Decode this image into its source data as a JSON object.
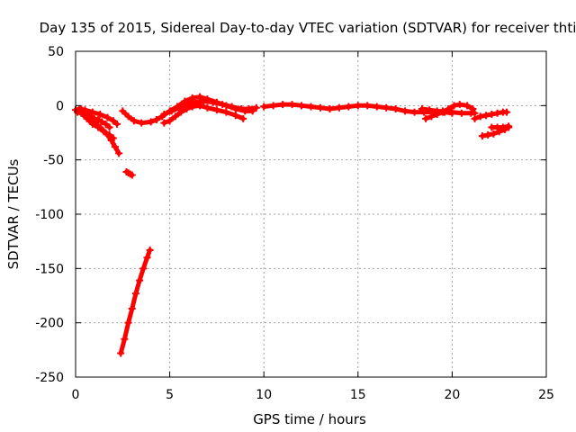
{
  "chart_data": {
    "type": "scatter",
    "title": "Day 135 of 2015, Sidereal Day-to-day VTEC variation (SDTVAR) for receiver thti",
    "xlabel": "GPS time / hours",
    "ylabel": "SDTVAR / TECUs",
    "xlim": [
      0,
      25
    ],
    "ylim": [
      -250,
      50
    ],
    "xticks": [
      0,
      5,
      10,
      15,
      20,
      25
    ],
    "yticks": [
      -250,
      -200,
      -150,
      -100,
      -50,
      0,
      50
    ],
    "xtick_labels": [
      "0",
      "5",
      "10",
      "15",
      "20",
      "25"
    ],
    "ytick_labels": [
      "-250",
      "-200",
      "-150",
      "-100",
      "-50",
      "0",
      "50"
    ],
    "grid": true,
    "legend": "none",
    "marker_color": "#ff0000",
    "series": [
      {
        "points": [
          [
            0.0,
            -4
          ],
          [
            0.2,
            -3
          ],
          [
            0.4,
            -5
          ],
          [
            0.6,
            -8
          ],
          [
            0.8,
            -10
          ],
          [
            1.0,
            -12
          ],
          [
            1.2,
            -13
          ],
          [
            1.4,
            -15
          ],
          [
            1.6,
            -17
          ],
          [
            1.8,
            -20
          ]
        ]
      },
      {
        "points": [
          [
            0.1,
            -6
          ],
          [
            0.3,
            -7
          ],
          [
            0.6,
            -12
          ],
          [
            0.9,
            -17
          ],
          [
            1.2,
            -20
          ],
          [
            1.5,
            -24
          ],
          [
            1.8,
            -27
          ],
          [
            2.0,
            -30
          ]
        ]
      },
      {
        "points": [
          [
            0.3,
            -3
          ],
          [
            0.7,
            -8
          ],
          [
            1.0,
            -15
          ],
          [
            1.3,
            -20
          ],
          [
            1.6,
            -25
          ],
          [
            1.9,
            -32
          ],
          [
            2.1,
            -38
          ],
          [
            2.3,
            -44
          ]
        ]
      },
      {
        "points": [
          [
            0.5,
            -4
          ],
          [
            0.9,
            -6
          ],
          [
            1.3,
            -8
          ],
          [
            1.7,
            -11
          ],
          [
            2.0,
            -14
          ],
          [
            2.2,
            -17
          ]
        ]
      },
      {
        "points": [
          [
            2.7,
            -61
          ],
          [
            2.8,
            -62
          ],
          [
            2.9,
            -63
          ],
          [
            3.0,
            -64
          ]
        ]
      },
      {
        "points": [
          [
            2.4,
            -228
          ],
          [
            2.6,
            -215
          ],
          [
            2.8,
            -200
          ],
          [
            3.0,
            -187
          ],
          [
            3.2,
            -173
          ],
          [
            3.4,
            -161
          ],
          [
            3.6,
            -150
          ],
          [
            3.8,
            -140
          ],
          [
            3.95,
            -133
          ]
        ]
      },
      {
        "points": [
          [
            2.5,
            -5
          ],
          [
            2.8,
            -10
          ],
          [
            3.1,
            -14
          ],
          [
            3.5,
            -16
          ],
          [
            4.0,
            -15
          ],
          [
            4.3,
            -13
          ],
          [
            4.6,
            -10
          ],
          [
            5.0,
            -5
          ],
          [
            5.4,
            -1
          ],
          [
            5.8,
            4
          ],
          [
            6.2,
            7
          ],
          [
            6.6,
            8
          ],
          [
            7.0,
            6
          ],
          [
            7.5,
            3
          ],
          [
            8.0,
            0
          ],
          [
            8.5,
            -3
          ],
          [
            9.0,
            -5
          ],
          [
            9.4,
            -5
          ]
        ]
      },
      {
        "points": [
          [
            4.7,
            -16
          ],
          [
            5.0,
            -14
          ],
          [
            5.3,
            -10
          ],
          [
            5.6,
            -6
          ],
          [
            5.9,
            -3
          ],
          [
            6.2,
            -1
          ],
          [
            6.6,
            0
          ],
          [
            7.0,
            -2
          ],
          [
            7.5,
            -4
          ],
          [
            8.0,
            -6
          ],
          [
            8.5,
            -9
          ],
          [
            8.9,
            -12
          ]
        ]
      },
      {
        "points": [
          [
            4.7,
            -8
          ],
          [
            5.1,
            -5
          ],
          [
            5.5,
            -2
          ],
          [
            5.9,
            1
          ],
          [
            6.3,
            3
          ],
          [
            6.8,
            4
          ],
          [
            7.3,
            3
          ],
          [
            7.8,
            1
          ],
          [
            8.3,
            -1
          ],
          [
            8.8,
            -3
          ],
          [
            9.2,
            -3
          ],
          [
            9.6,
            -2
          ]
        ]
      },
      {
        "points": [
          [
            10.0,
            -1
          ],
          [
            10.5,
            0
          ],
          [
            11.0,
            1
          ],
          [
            11.5,
            1
          ],
          [
            12.0,
            0
          ],
          [
            12.5,
            -1
          ],
          [
            13.0,
            -2
          ],
          [
            13.5,
            -3
          ],
          [
            14.0,
            -2
          ],
          [
            14.5,
            -1
          ],
          [
            15.0,
            0
          ],
          [
            15.5,
            0
          ],
          [
            16.0,
            -1
          ],
          [
            16.5,
            -2
          ],
          [
            17.0,
            -3
          ],
          [
            17.5,
            -5
          ],
          [
            18.0,
            -6
          ],
          [
            18.5,
            -6
          ],
          [
            19.0,
            -6
          ],
          [
            19.5,
            -5
          ],
          [
            20.0,
            -6
          ],
          [
            20.5,
            -7
          ],
          [
            21.0,
            -7
          ],
          [
            21.2,
            -7
          ]
        ]
      },
      {
        "points": [
          [
            18.6,
            -12
          ],
          [
            18.9,
            -10
          ],
          [
            19.2,
            -8
          ],
          [
            19.5,
            -6
          ],
          [
            19.8,
            -3
          ],
          [
            20.1,
            0
          ],
          [
            20.4,
            1
          ],
          [
            20.8,
            0
          ],
          [
            21.1,
            -3
          ]
        ]
      },
      {
        "points": [
          [
            18.4,
            -3
          ],
          [
            18.8,
            -4
          ],
          [
            19.2,
            -5
          ],
          [
            19.6,
            -6
          ],
          [
            20.0,
            -7
          ]
        ]
      },
      {
        "points": [
          [
            21.2,
            -12
          ],
          [
            21.5,
            -10
          ],
          [
            21.8,
            -9
          ],
          [
            22.1,
            -8
          ],
          [
            22.4,
            -7
          ],
          [
            22.7,
            -6
          ],
          [
            22.9,
            -6
          ]
        ]
      },
      {
        "points": [
          [
            21.6,
            -28
          ],
          [
            21.9,
            -27
          ],
          [
            22.2,
            -26
          ],
          [
            22.5,
            -24
          ],
          [
            22.8,
            -22
          ],
          [
            23.0,
            -20
          ]
        ]
      },
      {
        "points": [
          [
            22.1,
            -20
          ],
          [
            22.4,
            -20
          ],
          [
            22.7,
            -20
          ],
          [
            23.0,
            -19
          ]
        ]
      }
    ]
  }
}
